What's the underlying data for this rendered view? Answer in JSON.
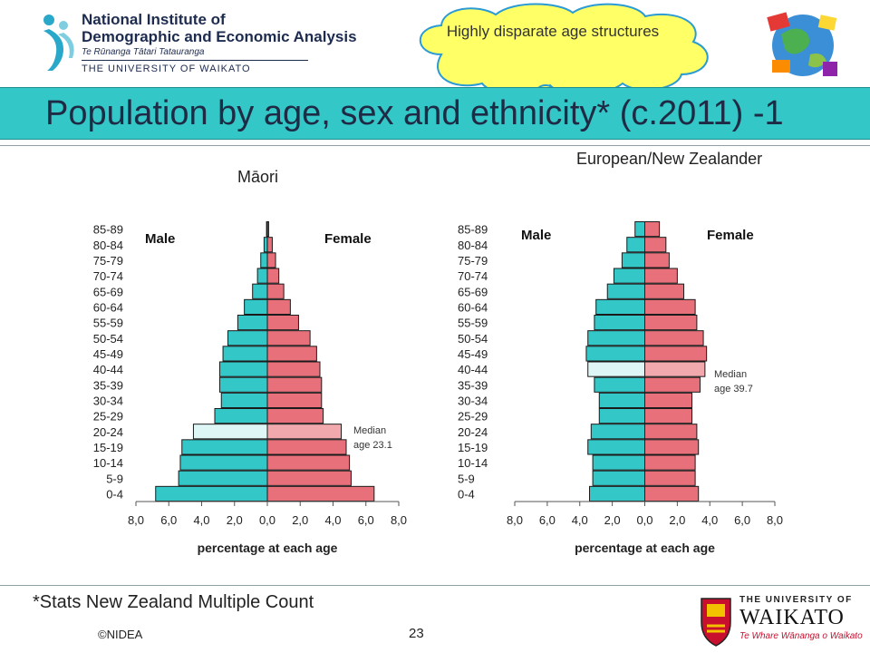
{
  "header": {
    "org_line1": "National Institute of",
    "org_line2": "Demographic and Economic Analysis",
    "org_tagline": "Te Rūnanga Tātari Tatauranga",
    "org_university": "THE UNIVERSITY OF WAIKATO",
    "callout": "Highly disparate age structures",
    "title": "Population by age, sex and ethnicity* (c.2011) -1"
  },
  "footer": {
    "footnote": "*Stats New Zealand Multiple Count",
    "copyright": "©NIDEA",
    "page_number": "23",
    "uni_line1": "THE UNIVERSITY OF",
    "uni_line2": "WAIKATO",
    "uni_line3": "Te Whare Wānanga o Waikato"
  },
  "colors": {
    "male": "#33c7c7",
    "female": "#e8707a",
    "title_band": "#33c7c7",
    "callout_fill": "#ffff66",
    "callout_stroke": "#2a9bd4"
  },
  "chart_data": [
    {
      "type": "bar",
      "title": "Māori",
      "xlabel": "percentage at each age",
      "xlim": [
        -8,
        8
      ],
      "ticks": [
        "8,0",
        "6,0",
        "4,0",
        "2,0",
        "0,0",
        "2,0",
        "4,0",
        "6,0",
        "8,0"
      ],
      "categories": [
        "0-4",
        "5-9",
        "10-14",
        "15-19",
        "20-24",
        "25-29",
        "30-34",
        "35-39",
        "40-44",
        "45-49",
        "50-54",
        "55-59",
        "60-64",
        "65-69",
        "70-74",
        "75-79",
        "80-84",
        "85-89"
      ],
      "series": [
        {
          "name": "Male",
          "values": [
            6.8,
            5.4,
            5.3,
            5.2,
            4.5,
            3.2,
            2.8,
            2.9,
            2.9,
            2.7,
            2.4,
            1.8,
            1.4,
            0.9,
            0.6,
            0.4,
            0.2,
            0.05
          ]
        },
        {
          "name": "Female",
          "values": [
            6.5,
            5.1,
            5.0,
            4.8,
            4.5,
            3.4,
            3.3,
            3.3,
            3.2,
            3.0,
            2.6,
            1.9,
            1.4,
            1.0,
            0.7,
            0.5,
            0.3,
            0.08
          ]
        }
      ],
      "median_label": "Median age 23.1",
      "median_group": "20-24"
    },
    {
      "type": "bar",
      "title": "European/New Zealander",
      "xlabel": "percentage at each age",
      "xlim": [
        -8,
        8
      ],
      "ticks": [
        "8,0",
        "6,0",
        "4,0",
        "2,0",
        "0,0",
        "2,0",
        "4,0",
        "6,0",
        "8,0"
      ],
      "categories": [
        "0-4",
        "5-9",
        "10-14",
        "15-19",
        "20-24",
        "25-29",
        "30-34",
        "35-39",
        "40-44",
        "45-49",
        "50-54",
        "55-59",
        "60-64",
        "65-69",
        "70-74",
        "75-79",
        "80-84",
        "85-89"
      ],
      "series": [
        {
          "name": "Male",
          "values": [
            3.4,
            3.2,
            3.2,
            3.5,
            3.3,
            2.8,
            2.8,
            3.1,
            3.5,
            3.6,
            3.5,
            3.1,
            3.0,
            2.3,
            1.9,
            1.4,
            1.1,
            0.6
          ]
        },
        {
          "name": "Female",
          "values": [
            3.3,
            3.1,
            3.1,
            3.3,
            3.2,
            2.9,
            2.9,
            3.4,
            3.7,
            3.8,
            3.6,
            3.2,
            3.1,
            2.4,
            2.0,
            1.5,
            1.3,
            0.9
          ]
        }
      ],
      "median_label": "Median age 39.7",
      "median_group": "40-44"
    }
  ]
}
